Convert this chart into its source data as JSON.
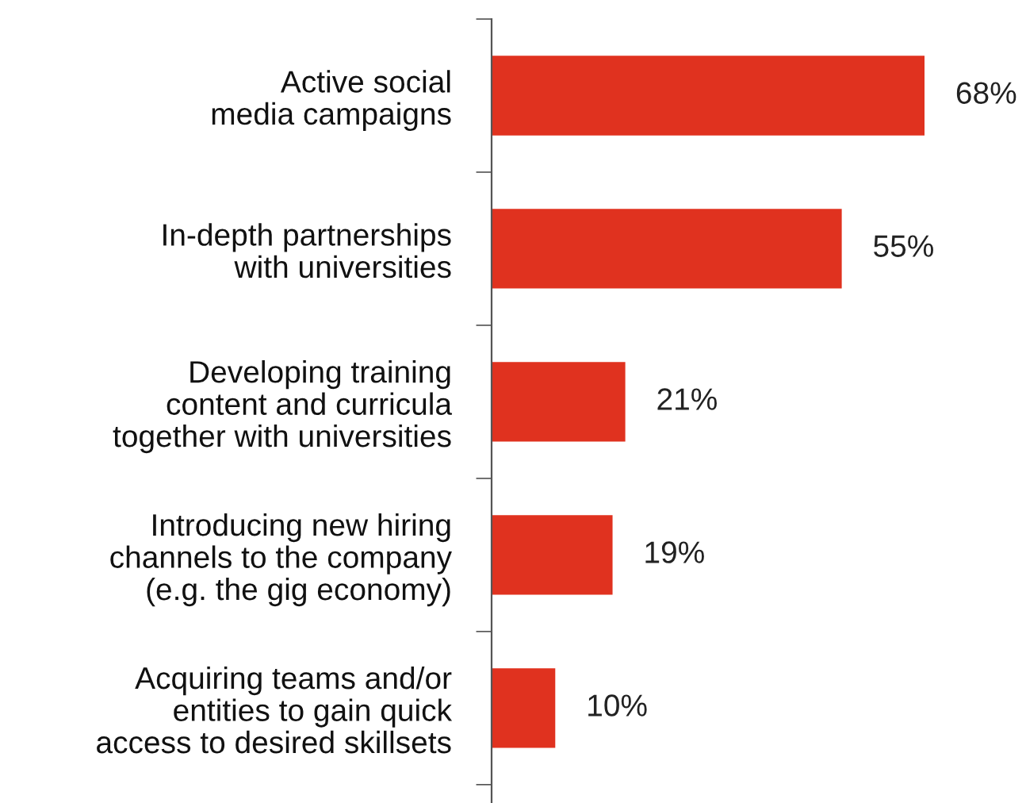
{
  "chart_data": {
    "type": "bar",
    "orientation": "horizontal",
    "categories": [
      "Active social\nmedia campaigns",
      "In-depth partnerships\nwith universities",
      "Developing training\ncontent and curricula\ntogether with universities",
      "Introducing new hiring\nchannels to the company\n(e.g. the gig economy)",
      "Acquiring teams and/or\nentities to gain quick\naccess to desired skillsets"
    ],
    "values": [
      68,
      55,
      21,
      19,
      10
    ],
    "color": "#e0321f",
    "value_labels": [
      "68%",
      "55%",
      "21%",
      "19%",
      "10%"
    ],
    "grid": false,
    "legend": false
  }
}
